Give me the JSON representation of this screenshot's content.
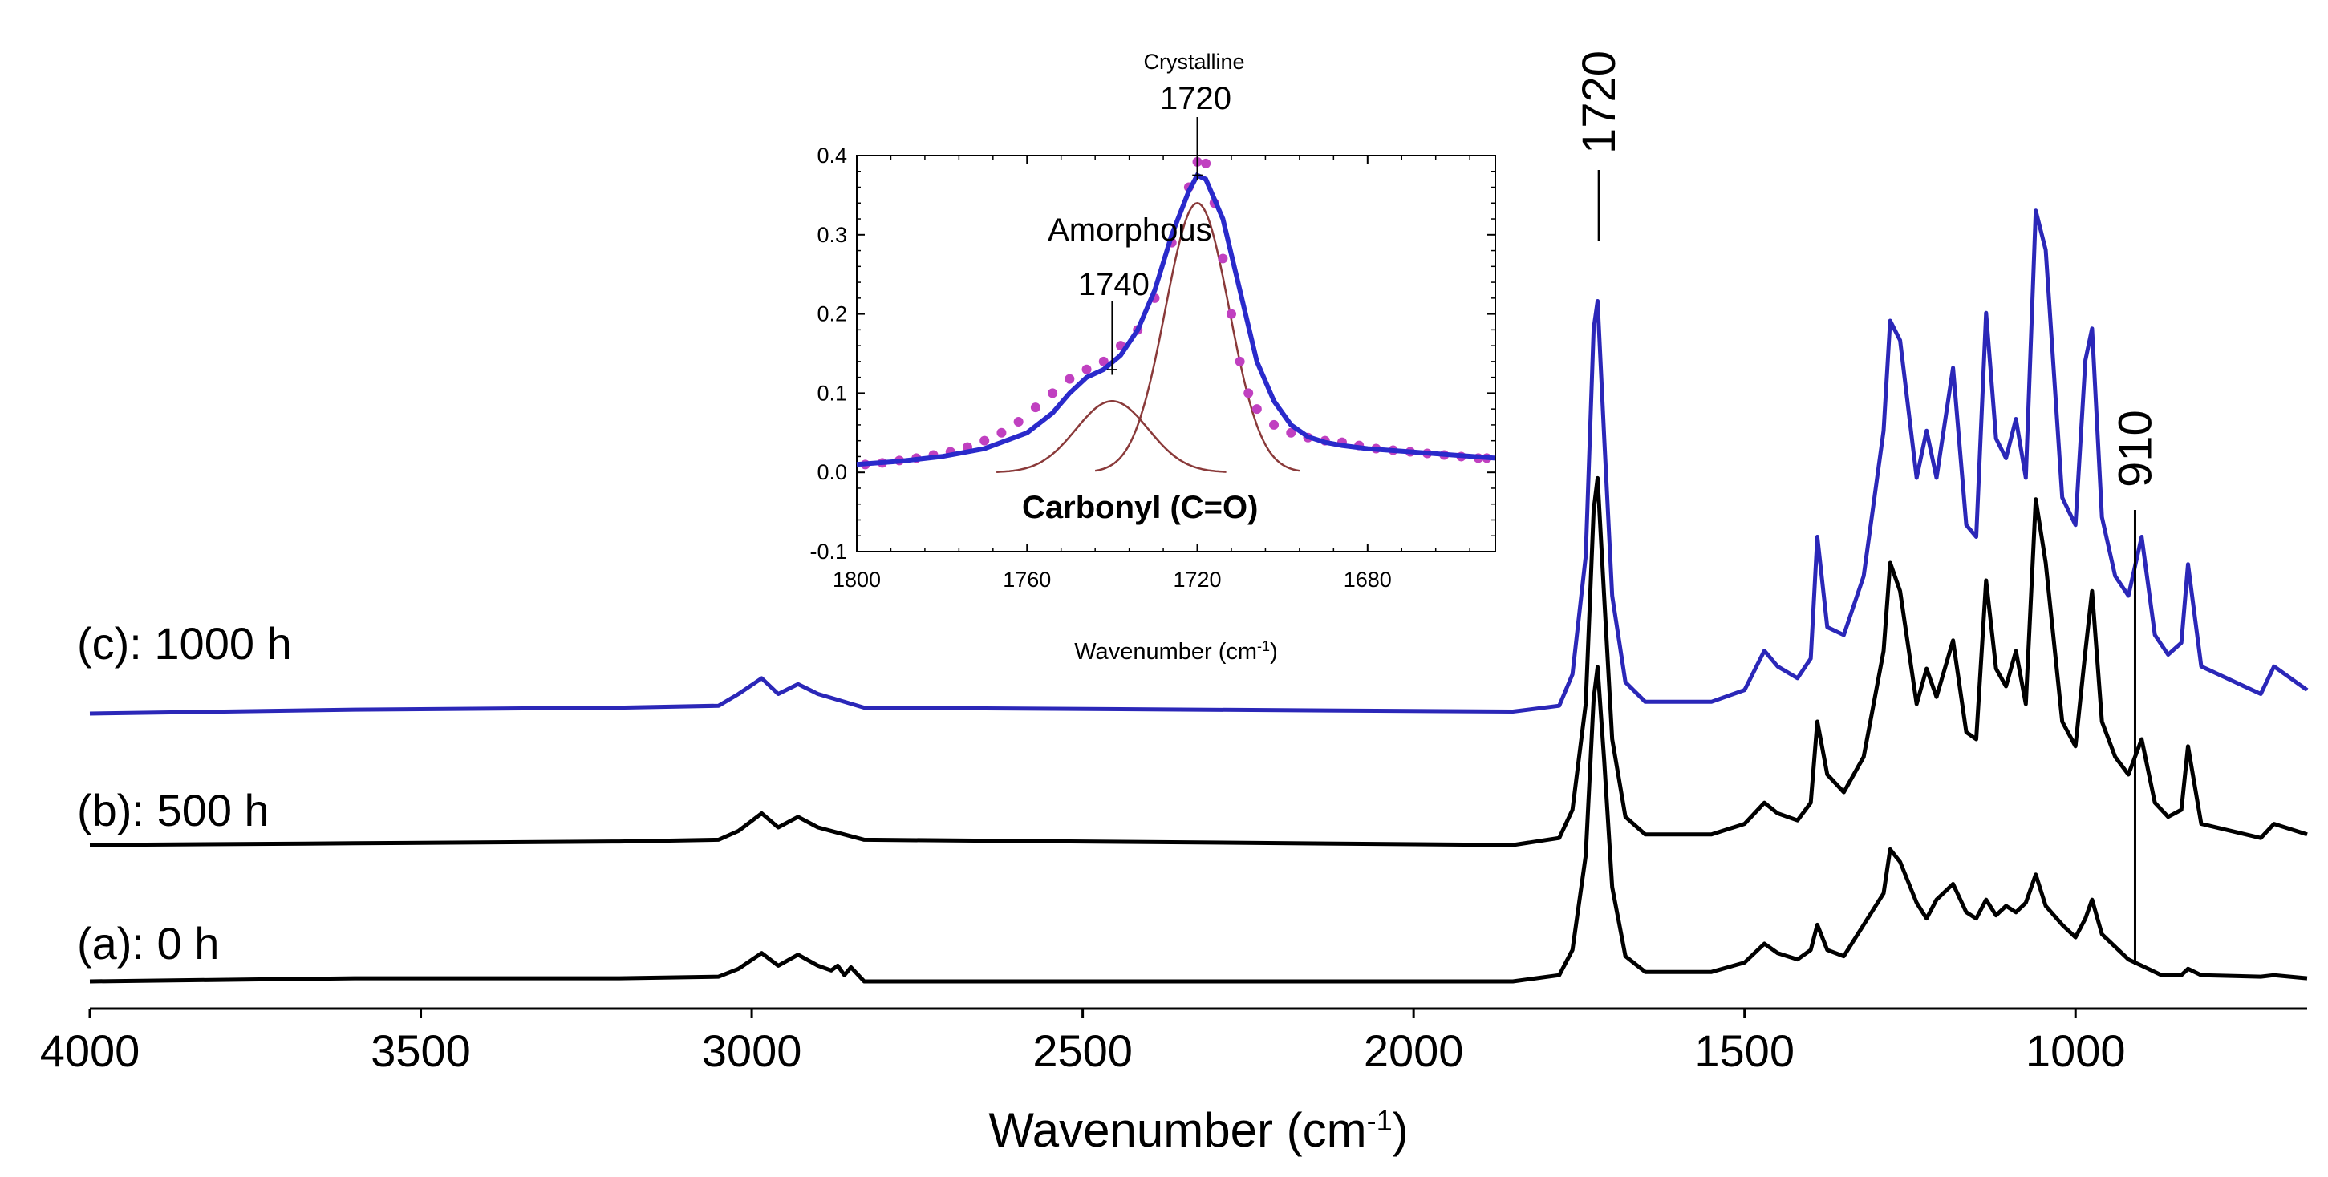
{
  "chart_data": [
    {
      "type": "line",
      "xlabel": "Wavenumber",
      "xlabel_unit": "(cm",
      "xlabel_unit_sup": "-1",
      "xlabel_unit_close": ")",
      "xlim": [
        4000,
        650
      ],
      "x_ticks": [
        4000,
        3500,
        3000,
        2500,
        2000,
        1500,
        1000
      ],
      "x_tick_labels": [
        "4000",
        "3500",
        "3000",
        "2500",
        "2000",
        "1500",
        "1000"
      ],
      "y_axis_shown": false,
      "grid": false,
      "series": [
        {
          "name": "(a): 0 h",
          "color": "#000000",
          "offset": 0.0,
          "points": [
            [
              4000,
              0.0
            ],
            [
              3600,
              0.01
            ],
            [
              3200,
              0.01
            ],
            [
              3050,
              0.015
            ],
            [
              3020,
              0.04
            ],
            [
              2985,
              0.09
            ],
            [
              2960,
              0.05
            ],
            [
              2930,
              0.085
            ],
            [
              2900,
              0.05
            ],
            [
              2880,
              0.035
            ],
            [
              2870,
              0.05
            ],
            [
              2860,
              0.02
            ],
            [
              2850,
              0.045
            ],
            [
              2830,
              0.0
            ],
            [
              1850,
              0.0
            ],
            [
              1780,
              0.02
            ],
            [
              1760,
              0.1
            ],
            [
              1740,
              0.4
            ],
            [
              1728,
              0.9
            ],
            [
              1722,
              1.0
            ],
            [
              1712,
              0.7
            ],
            [
              1700,
              0.3
            ],
            [
              1680,
              0.08
            ],
            [
              1650,
              0.03
            ],
            [
              1550,
              0.03
            ],
            [
              1500,
              0.06
            ],
            [
              1470,
              0.12
            ],
            [
              1450,
              0.09
            ],
            [
              1420,
              0.07
            ],
            [
              1400,
              0.1
            ],
            [
              1390,
              0.18
            ],
            [
              1375,
              0.1
            ],
            [
              1350,
              0.08
            ],
            [
              1320,
              0.18
            ],
            [
              1290,
              0.28
            ],
            [
              1280,
              0.42
            ],
            [
              1265,
              0.38
            ],
            [
              1240,
              0.25
            ],
            [
              1225,
              0.2
            ],
            [
              1210,
              0.26
            ],
            [
              1185,
              0.31
            ],
            [
              1165,
              0.22
            ],
            [
              1150,
              0.2
            ],
            [
              1135,
              0.26
            ],
            [
              1120,
              0.21
            ],
            [
              1105,
              0.24
            ],
            [
              1090,
              0.22
            ],
            [
              1075,
              0.25
            ],
            [
              1060,
              0.34
            ],
            [
              1045,
              0.24
            ],
            [
              1020,
              0.18
            ],
            [
              1000,
              0.14
            ],
            [
              985,
              0.2
            ],
            [
              975,
              0.26
            ],
            [
              960,
              0.15
            ],
            [
              940,
              0.11
            ],
            [
              920,
              0.07
            ],
            [
              900,
              0.05
            ],
            [
              870,
              0.02
            ],
            [
              840,
              0.02
            ],
            [
              830,
              0.04
            ],
            [
              810,
              0.02
            ],
            [
              720,
              0.015
            ],
            [
              700,
              0.02
            ],
            [
              650,
              0.01
            ]
          ]
        },
        {
          "name": "(b): 500 h",
          "color": "#000000",
          "offset": 0.6,
          "points": [
            [
              4000,
              0.0
            ],
            [
              3600,
              0.005
            ],
            [
              3200,
              0.01
            ],
            [
              3050,
              0.015
            ],
            [
              3020,
              0.04
            ],
            [
              2985,
              0.09
            ],
            [
              2960,
              0.05
            ],
            [
              2930,
              0.08
            ],
            [
              2900,
              0.05
            ],
            [
              2880,
              0.04
            ],
            [
              2830,
              0.015
            ],
            [
              1850,
              0.0
            ],
            [
              1780,
              0.02
            ],
            [
              1760,
              0.1
            ],
            [
              1740,
              0.4
            ],
            [
              1728,
              0.95
            ],
            [
              1722,
              1.04
            ],
            [
              1712,
              0.7
            ],
            [
              1700,
              0.3
            ],
            [
              1680,
              0.08
            ],
            [
              1650,
              0.03
            ],
            [
              1550,
              0.03
            ],
            [
              1500,
              0.06
            ],
            [
              1470,
              0.12
            ],
            [
              1450,
              0.09
            ],
            [
              1420,
              0.07
            ],
            [
              1400,
              0.12
            ],
            [
              1390,
              0.35
            ],
            [
              1375,
              0.2
            ],
            [
              1350,
              0.15
            ],
            [
              1320,
              0.25
            ],
            [
              1290,
              0.55
            ],
            [
              1280,
              0.8
            ],
            [
              1265,
              0.72
            ],
            [
              1240,
              0.4
            ],
            [
              1225,
              0.5
            ],
            [
              1210,
              0.42
            ],
            [
              1185,
              0.58
            ],
            [
              1165,
              0.32
            ],
            [
              1150,
              0.3
            ],
            [
              1135,
              0.75
            ],
            [
              1120,
              0.5
            ],
            [
              1105,
              0.45
            ],
            [
              1090,
              0.55
            ],
            [
              1075,
              0.4
            ],
            [
              1060,
              0.98
            ],
            [
              1045,
              0.8
            ],
            [
              1020,
              0.35
            ],
            [
              1000,
              0.28
            ],
            [
              985,
              0.55
            ],
            [
              975,
              0.72
            ],
            [
              960,
              0.35
            ],
            [
              940,
              0.25
            ],
            [
              920,
              0.2
            ],
            [
              900,
              0.3
            ],
            [
              880,
              0.12
            ],
            [
              860,
              0.08
            ],
            [
              840,
              0.1
            ],
            [
              830,
              0.28
            ],
            [
              810,
              0.06
            ],
            [
              720,
              0.02
            ],
            [
              700,
              0.06
            ],
            [
              650,
              0.03
            ]
          ]
        },
        {
          "name": "(c): 1000 h",
          "color": "#2b27b8",
          "offset": 1.2,
          "points": [
            [
              4000,
              0.0
            ],
            [
              3600,
              0.01
            ],
            [
              3200,
              0.015
            ],
            [
              3050,
              0.02
            ],
            [
              3020,
              0.05
            ],
            [
              2985,
              0.09
            ],
            [
              2960,
              0.05
            ],
            [
              2930,
              0.075
            ],
            [
              2900,
              0.05
            ],
            [
              2880,
              0.04
            ],
            [
              2830,
              0.015
            ],
            [
              1850,
              0.005
            ],
            [
              1780,
              0.02
            ],
            [
              1760,
              0.1
            ],
            [
              1740,
              0.4
            ],
            [
              1728,
              0.98
            ],
            [
              1722,
              1.05
            ],
            [
              1712,
              0.7
            ],
            [
              1700,
              0.3
            ],
            [
              1680,
              0.08
            ],
            [
              1650,
              0.03
            ],
            [
              1550,
              0.03
            ],
            [
              1500,
              0.06
            ],
            [
              1470,
              0.16
            ],
            [
              1450,
              0.12
            ],
            [
              1420,
              0.09
            ],
            [
              1400,
              0.14
            ],
            [
              1390,
              0.45
            ],
            [
              1375,
              0.22
            ],
            [
              1350,
              0.2
            ],
            [
              1320,
              0.35
            ],
            [
              1290,
              0.72
            ],
            [
              1280,
              1.0
            ],
            [
              1265,
              0.95
            ],
            [
              1240,
              0.6
            ],
            [
              1225,
              0.72
            ],
            [
              1210,
              0.6
            ],
            [
              1185,
              0.88
            ],
            [
              1165,
              0.48
            ],
            [
              1150,
              0.45
            ],
            [
              1135,
              1.02
            ],
            [
              1120,
              0.7
            ],
            [
              1105,
              0.65
            ],
            [
              1090,
              0.75
            ],
            [
              1075,
              0.6
            ],
            [
              1060,
              1.28
            ],
            [
              1045,
              1.18
            ],
            [
              1020,
              0.55
            ],
            [
              1000,
              0.48
            ],
            [
              985,
              0.9
            ],
            [
              975,
              0.98
            ],
            [
              960,
              0.5
            ],
            [
              940,
              0.35
            ],
            [
              920,
              0.3
            ],
            [
              900,
              0.45
            ],
            [
              880,
              0.2
            ],
            [
              860,
              0.15
            ],
            [
              840,
              0.18
            ],
            [
              830,
              0.38
            ],
            [
              810,
              0.12
            ],
            [
              720,
              0.05
            ],
            [
              700,
              0.12
            ],
            [
              650,
              0.06
            ]
          ]
        }
      ],
      "annotations": [
        {
          "text": "1720",
          "x": 1720
        },
        {
          "text": "910",
          "x": 910
        }
      ]
    },
    {
      "type": "line",
      "role": "inset",
      "title": "Carbonyl (C=O)",
      "xlabel": "Wavenumber",
      "xlabel_unit": "(cm",
      "xlabel_unit_sup": "-1",
      "xlabel_unit_close": ")",
      "xlim": [
        1800,
        1650
      ],
      "ylim": [
        -0.1,
        0.4
      ],
      "x_ticks": [
        1800,
        1760,
        1720,
        1680
      ],
      "x_tick_labels": [
        "1800",
        "1760",
        "1720",
        "1680"
      ],
      "y_ticks": [
        -0.1,
        0.0,
        0.1,
        0.2,
        0.3,
        0.4
      ],
      "y_tick_labels": [
        "-0.1",
        "0.0",
        "0.1",
        "0.2",
        "0.3",
        "0.4"
      ],
      "grid": false,
      "measured_points": {
        "color": "#c040c0",
        "x": [
          1798,
          1794,
          1790,
          1786,
          1782,
          1778,
          1774,
          1770,
          1766,
          1762,
          1758,
          1754,
          1750,
          1746,
          1742,
          1738,
          1734,
          1730,
          1726,
          1722,
          1720,
          1718,
          1716,
          1714,
          1712,
          1710,
          1708,
          1706,
          1702,
          1698,
          1694,
          1690,
          1686,
          1682,
          1678,
          1674,
          1670,
          1666,
          1662,
          1658,
          1654,
          1652
        ],
        "y": [
          0.01,
          0.012,
          0.015,
          0.018,
          0.022,
          0.026,
          0.032,
          0.04,
          0.05,
          0.064,
          0.082,
          0.1,
          0.118,
          0.13,
          0.14,
          0.16,
          0.18,
          0.22,
          0.29,
          0.36,
          0.392,
          0.39,
          0.34,
          0.27,
          0.2,
          0.14,
          0.1,
          0.08,
          0.06,
          0.05,
          0.044,
          0.04,
          0.038,
          0.034,
          0.03,
          0.028,
          0.026,
          0.024,
          0.022,
          0.02,
          0.018,
          0.018
        ]
      },
      "fit_total": {
        "color": "#2a2acb",
        "x": [
          1800,
          1790,
          1780,
          1770,
          1760,
          1754,
          1750,
          1746,
          1742,
          1738,
          1734,
          1730,
          1726,
          1722,
          1720,
          1718,
          1714,
          1710,
          1706,
          1702,
          1698,
          1694,
          1690,
          1686,
          1680,
          1670,
          1660,
          1650
        ],
        "y": [
          0.01,
          0.014,
          0.02,
          0.03,
          0.05,
          0.075,
          0.1,
          0.12,
          0.13,
          0.148,
          0.18,
          0.23,
          0.3,
          0.355,
          0.375,
          0.37,
          0.32,
          0.23,
          0.14,
          0.09,
          0.06,
          0.045,
          0.038,
          0.034,
          0.03,
          0.026,
          0.022,
          0.018
        ]
      },
      "peaks": [
        {
          "name": "Amorphous",
          "center": 1740,
          "height": 0.09,
          "width": 8.5,
          "color": "#8a3a3a"
        },
        {
          "name": "Crystalline",
          "center": 1720,
          "height": 0.34,
          "width": 7.5,
          "color": "#8a3a3a"
        }
      ],
      "annotations": [
        {
          "text": "Amorphous",
          "sub": "1740",
          "x": 1740,
          "y": 0.13
        },
        {
          "text": "Crystalline",
          "sub": "1720",
          "x": 1720,
          "y": 0.375
        }
      ]
    }
  ]
}
